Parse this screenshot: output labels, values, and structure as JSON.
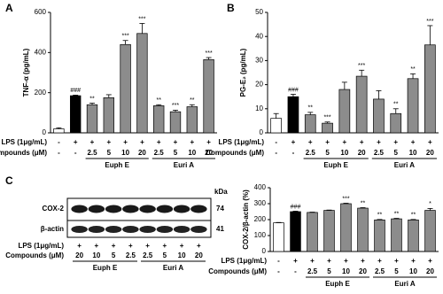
{
  "panel_labels": [
    "A",
    "B",
    "C"
  ],
  "chart_data": [
    {
      "type": "bar",
      "ylabel": "TNF-α (pg/mL)",
      "values": [
        20,
        185,
        140,
        175,
        440,
        495,
        135,
        105,
        130,
        365
      ],
      "errors": [
        5,
        3,
        8,
        15,
        20,
        50,
        5,
        8,
        10,
        10
      ],
      "annotations": [
        null,
        "###",
        "**",
        null,
        "***",
        "***",
        "**",
        "***",
        "**",
        "***"
      ],
      "bar_colors": [
        "#ffffff",
        "#000000",
        "#8c8c8c",
        "#8c8c8c",
        "#8c8c8c",
        "#8c8c8c",
        "#8c8c8c",
        "#8c8c8c",
        "#8c8c8c",
        "#8c8c8c"
      ],
      "ylim": [
        0,
        600
      ],
      "yticks": [
        0,
        200,
        400,
        600
      ],
      "row_names": [
        "LPS (1μg/mL)",
        "Compounds (μM)"
      ],
      "lps_row": [
        "-",
        "+",
        "+",
        "+",
        "+",
        "+",
        "+",
        "+",
        "+",
        "+"
      ],
      "compound_row": [
        "-",
        "-",
        "2.5",
        "5",
        "10",
        "20",
        "2.5",
        "5",
        "10",
        "20"
      ],
      "groups": [
        "Euph E",
        "Euri A"
      ]
    },
    {
      "type": "bar",
      "ylabel": "PG-E₂ (pg/mL)",
      "values": [
        6,
        15,
        7.5,
        4,
        18,
        23.5,
        14,
        8,
        22.5,
        36.5
      ],
      "errors": [
        2,
        1,
        1,
        0.5,
        3,
        2.5,
        3.5,
        2,
        2,
        8
      ],
      "annotations": [
        null,
        "###",
        "**",
        "***",
        null,
        "***",
        null,
        "**",
        "**",
        "***"
      ],
      "bar_colors": [
        "#ffffff",
        "#000000",
        "#8c8c8c",
        "#8c8c8c",
        "#8c8c8c",
        "#8c8c8c",
        "#8c8c8c",
        "#8c8c8c",
        "#8c8c8c",
        "#8c8c8c"
      ],
      "ylim": [
        0,
        50
      ],
      "yticks": [
        0,
        10,
        20,
        30,
        40,
        50
      ],
      "row_names": [
        "LPS (1μg/mL)",
        "Compounds (μM)"
      ],
      "lps_row": [
        "-",
        "+",
        "+",
        "+",
        "+",
        "+",
        "+",
        "+",
        "+",
        "+"
      ],
      "compound_row": [
        "-",
        "-",
        "2.5",
        "5",
        "10",
        "20",
        "2.5",
        "5",
        "10",
        "20"
      ],
      "groups": [
        "Euph E",
        "Euri A"
      ]
    },
    {
      "type": "bar",
      "ylabel": "COX-2/β-actin (%)",
      "values": [
        180,
        250,
        245,
        258,
        300,
        272,
        198,
        205,
        198,
        258
      ],
      "errors": [
        2,
        3,
        2,
        2,
        3,
        3,
        3,
        3,
        3,
        12
      ],
      "annotations": [
        null,
        "###",
        null,
        null,
        "***",
        "**",
        "**",
        "**",
        "**",
        "*"
      ],
      "bar_colors": [
        "#ffffff",
        "#000000",
        "#8c8c8c",
        "#8c8c8c",
        "#8c8c8c",
        "#8c8c8c",
        "#8c8c8c",
        "#8c8c8c",
        "#8c8c8c",
        "#8c8c8c"
      ],
      "ylim": [
        0,
        400
      ],
      "yticks": [
        0,
        100,
        200,
        300,
        400
      ],
      "row_names": [
        "LPS (1μg/mL)",
        "Compounds (μM)"
      ],
      "lps_row": [
        "-",
        "+",
        "+",
        "+",
        "+",
        "+",
        "+",
        "+",
        "+",
        "+"
      ],
      "compound_row": [
        "-",
        "-",
        "2.5",
        "5",
        "10",
        "20",
        "2.5",
        "5",
        "10",
        "20"
      ],
      "groups": [
        "Euph E",
        "Euri A"
      ]
    }
  ],
  "blot": {
    "unit": "kDa",
    "bands": [
      "COX-2",
      "β-actin"
    ],
    "sizes": [
      "74",
      "41"
    ],
    "row_names": [
      "LPS (1μg/mL)",
      "Compounds (μM)"
    ],
    "lps_row": [
      "+",
      "+",
      "+",
      "+",
      "+",
      "+",
      "+",
      "+"
    ],
    "compound_row": [
      "20",
      "10",
      "5",
      "2.5",
      "2.5",
      "5",
      "10",
      "20"
    ],
    "groups": [
      "Euph E",
      "Euri A"
    ]
  }
}
